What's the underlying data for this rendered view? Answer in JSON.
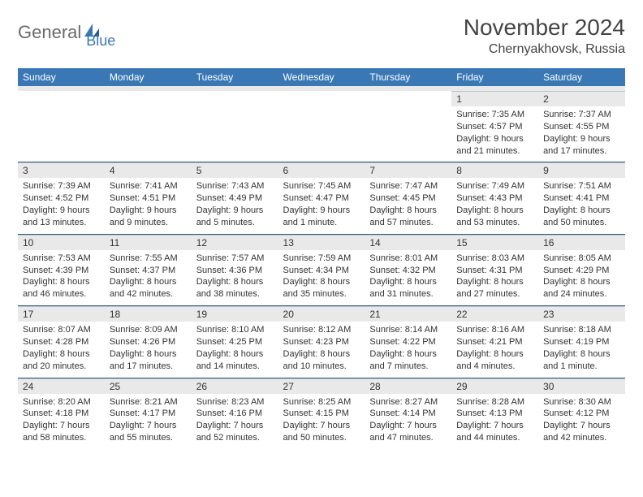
{
  "logo": {
    "text1": "General",
    "text2": "Blue"
  },
  "title": "November 2024",
  "location": "Chernyakhovsk, Russia",
  "colors": {
    "header_bg": "#3a78b5",
    "header_text": "#ffffff",
    "daynum_bg": "#e9e9e9",
    "cell_border": "#3a5a7a",
    "logo_gray": "#6a6a6a",
    "logo_blue": "#3a78b5"
  },
  "weekdays": [
    "Sunday",
    "Monday",
    "Tuesday",
    "Wednesday",
    "Thursday",
    "Friday",
    "Saturday"
  ],
  "weeks": [
    [
      null,
      null,
      null,
      null,
      null,
      {
        "day": "1",
        "sunrise": "Sunrise: 7:35 AM",
        "sunset": "Sunset: 4:57 PM",
        "daylight1": "Daylight: 9 hours",
        "daylight2": "and 21 minutes."
      },
      {
        "day": "2",
        "sunrise": "Sunrise: 7:37 AM",
        "sunset": "Sunset: 4:55 PM",
        "daylight1": "Daylight: 9 hours",
        "daylight2": "and 17 minutes."
      }
    ],
    [
      {
        "day": "3",
        "sunrise": "Sunrise: 7:39 AM",
        "sunset": "Sunset: 4:52 PM",
        "daylight1": "Daylight: 9 hours",
        "daylight2": "and 13 minutes."
      },
      {
        "day": "4",
        "sunrise": "Sunrise: 7:41 AM",
        "sunset": "Sunset: 4:51 PM",
        "daylight1": "Daylight: 9 hours",
        "daylight2": "and 9 minutes."
      },
      {
        "day": "5",
        "sunrise": "Sunrise: 7:43 AM",
        "sunset": "Sunset: 4:49 PM",
        "daylight1": "Daylight: 9 hours",
        "daylight2": "and 5 minutes."
      },
      {
        "day": "6",
        "sunrise": "Sunrise: 7:45 AM",
        "sunset": "Sunset: 4:47 PM",
        "daylight1": "Daylight: 9 hours",
        "daylight2": "and 1 minute."
      },
      {
        "day": "7",
        "sunrise": "Sunrise: 7:47 AM",
        "sunset": "Sunset: 4:45 PM",
        "daylight1": "Daylight: 8 hours",
        "daylight2": "and 57 minutes."
      },
      {
        "day": "8",
        "sunrise": "Sunrise: 7:49 AM",
        "sunset": "Sunset: 4:43 PM",
        "daylight1": "Daylight: 8 hours",
        "daylight2": "and 53 minutes."
      },
      {
        "day": "9",
        "sunrise": "Sunrise: 7:51 AM",
        "sunset": "Sunset: 4:41 PM",
        "daylight1": "Daylight: 8 hours",
        "daylight2": "and 50 minutes."
      }
    ],
    [
      {
        "day": "10",
        "sunrise": "Sunrise: 7:53 AM",
        "sunset": "Sunset: 4:39 PM",
        "daylight1": "Daylight: 8 hours",
        "daylight2": "and 46 minutes."
      },
      {
        "day": "11",
        "sunrise": "Sunrise: 7:55 AM",
        "sunset": "Sunset: 4:37 PM",
        "daylight1": "Daylight: 8 hours",
        "daylight2": "and 42 minutes."
      },
      {
        "day": "12",
        "sunrise": "Sunrise: 7:57 AM",
        "sunset": "Sunset: 4:36 PM",
        "daylight1": "Daylight: 8 hours",
        "daylight2": "and 38 minutes."
      },
      {
        "day": "13",
        "sunrise": "Sunrise: 7:59 AM",
        "sunset": "Sunset: 4:34 PM",
        "daylight1": "Daylight: 8 hours",
        "daylight2": "and 35 minutes."
      },
      {
        "day": "14",
        "sunrise": "Sunrise: 8:01 AM",
        "sunset": "Sunset: 4:32 PM",
        "daylight1": "Daylight: 8 hours",
        "daylight2": "and 31 minutes."
      },
      {
        "day": "15",
        "sunrise": "Sunrise: 8:03 AM",
        "sunset": "Sunset: 4:31 PM",
        "daylight1": "Daylight: 8 hours",
        "daylight2": "and 27 minutes."
      },
      {
        "day": "16",
        "sunrise": "Sunrise: 8:05 AM",
        "sunset": "Sunset: 4:29 PM",
        "daylight1": "Daylight: 8 hours",
        "daylight2": "and 24 minutes."
      }
    ],
    [
      {
        "day": "17",
        "sunrise": "Sunrise: 8:07 AM",
        "sunset": "Sunset: 4:28 PM",
        "daylight1": "Daylight: 8 hours",
        "daylight2": "and 20 minutes."
      },
      {
        "day": "18",
        "sunrise": "Sunrise: 8:09 AM",
        "sunset": "Sunset: 4:26 PM",
        "daylight1": "Daylight: 8 hours",
        "daylight2": "and 17 minutes."
      },
      {
        "day": "19",
        "sunrise": "Sunrise: 8:10 AM",
        "sunset": "Sunset: 4:25 PM",
        "daylight1": "Daylight: 8 hours",
        "daylight2": "and 14 minutes."
      },
      {
        "day": "20",
        "sunrise": "Sunrise: 8:12 AM",
        "sunset": "Sunset: 4:23 PM",
        "daylight1": "Daylight: 8 hours",
        "daylight2": "and 10 minutes."
      },
      {
        "day": "21",
        "sunrise": "Sunrise: 8:14 AM",
        "sunset": "Sunset: 4:22 PM",
        "daylight1": "Daylight: 8 hours",
        "daylight2": "and 7 minutes."
      },
      {
        "day": "22",
        "sunrise": "Sunrise: 8:16 AM",
        "sunset": "Sunset: 4:21 PM",
        "daylight1": "Daylight: 8 hours",
        "daylight2": "and 4 minutes."
      },
      {
        "day": "23",
        "sunrise": "Sunrise: 8:18 AM",
        "sunset": "Sunset: 4:19 PM",
        "daylight1": "Daylight: 8 hours",
        "daylight2": "and 1 minute."
      }
    ],
    [
      {
        "day": "24",
        "sunrise": "Sunrise: 8:20 AM",
        "sunset": "Sunset: 4:18 PM",
        "daylight1": "Daylight: 7 hours",
        "daylight2": "and 58 minutes."
      },
      {
        "day": "25",
        "sunrise": "Sunrise: 8:21 AM",
        "sunset": "Sunset: 4:17 PM",
        "daylight1": "Daylight: 7 hours",
        "daylight2": "and 55 minutes."
      },
      {
        "day": "26",
        "sunrise": "Sunrise: 8:23 AM",
        "sunset": "Sunset: 4:16 PM",
        "daylight1": "Daylight: 7 hours",
        "daylight2": "and 52 minutes."
      },
      {
        "day": "27",
        "sunrise": "Sunrise: 8:25 AM",
        "sunset": "Sunset: 4:15 PM",
        "daylight1": "Daylight: 7 hours",
        "daylight2": "and 50 minutes."
      },
      {
        "day": "28",
        "sunrise": "Sunrise: 8:27 AM",
        "sunset": "Sunset: 4:14 PM",
        "daylight1": "Daylight: 7 hours",
        "daylight2": "and 47 minutes."
      },
      {
        "day": "29",
        "sunrise": "Sunrise: 8:28 AM",
        "sunset": "Sunset: 4:13 PM",
        "daylight1": "Daylight: 7 hours",
        "daylight2": "and 44 minutes."
      },
      {
        "day": "30",
        "sunrise": "Sunrise: 8:30 AM",
        "sunset": "Sunset: 4:12 PM",
        "daylight1": "Daylight: 7 hours",
        "daylight2": "and 42 minutes."
      }
    ]
  ]
}
